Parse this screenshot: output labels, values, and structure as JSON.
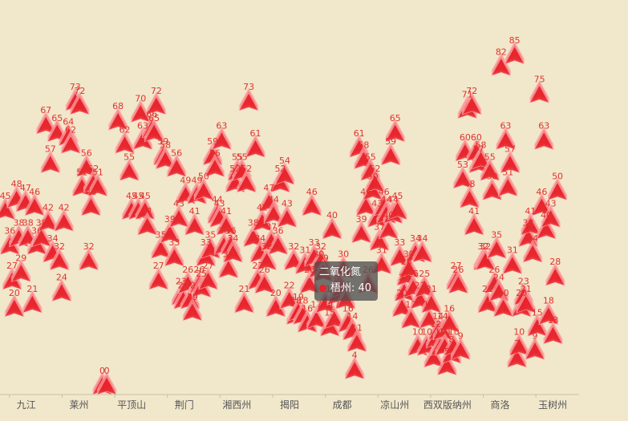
{
  "chart_data": {
    "type": "scatter",
    "symbol": "triangle",
    "color": "#e8232b",
    "background": "#f1e7cb",
    "xlabels": [
      "九江",
      "莱州",
      "平顶山",
      "荆门",
      "湘西州",
      "揭阳",
      "成都",
      "凉山州",
      "西双版纳州",
      "商洛",
      "玉树州"
    ],
    "ylim": [
      0,
      100
    ],
    "points": [
      [
        0.1,
        45
      ],
      [
        0.2,
        36
      ],
      [
        0.25,
        27
      ],
      [
        0.3,
        20
      ],
      [
        0.35,
        48
      ],
      [
        0.4,
        38
      ],
      [
        0.45,
        29
      ],
      [
        0.55,
        47
      ],
      [
        0.6,
        38
      ],
      [
        0.7,
        21
      ],
      [
        0.75,
        46
      ],
      [
        0.8,
        36
      ],
      [
        0.9,
        38
      ],
      [
        1.0,
        67
      ],
      [
        1.05,
        42
      ],
      [
        1.1,
        57
      ],
      [
        1.15,
        34
      ],
      [
        1.25,
        65
      ],
      [
        1.3,
        32
      ],
      [
        1.35,
        24
      ],
      [
        1.4,
        42
      ],
      [
        1.5,
        64
      ],
      [
        1.55,
        62
      ],
      [
        1.65,
        73
      ],
      [
        1.75,
        72
      ],
      [
        1.8,
        51
      ],
      [
        1.9,
        56
      ],
      [
        1.95,
        32
      ],
      [
        2.0,
        46
      ],
      [
        2.05,
        52
      ],
      [
        2.15,
        51
      ],
      [
        2.25,
        0
      ],
      [
        2.35,
        0
      ],
      [
        2.6,
        68
      ],
      [
        2.75,
        62
      ],
      [
        2.85,
        55
      ],
      [
        2.9,
        45
      ],
      [
        3.05,
        45
      ],
      [
        3.1,
        70
      ],
      [
        3.15,
        63
      ],
      [
        3.2,
        45
      ],
      [
        3.25,
        41
      ],
      [
        3.35,
        66
      ],
      [
        3.4,
        65
      ],
      [
        3.45,
        72
      ],
      [
        3.5,
        27
      ],
      [
        3.55,
        35
      ],
      [
        3.6,
        59
      ],
      [
        3.65,
        58
      ],
      [
        3.75,
        39
      ],
      [
        3.85,
        33
      ],
      [
        3.9,
        56
      ],
      [
        3.95,
        43
      ],
      [
        4.0,
        23
      ],
      [
        4.05,
        22
      ],
      [
        4.1,
        49
      ],
      [
        4.15,
        26
      ],
      [
        4.2,
        22
      ],
      [
        4.25,
        19
      ],
      [
        4.3,
        41
      ],
      [
        4.35,
        49
      ],
      [
        4.4,
        26
      ],
      [
        4.45,
        25
      ],
      [
        4.5,
        50
      ],
      [
        4.55,
        33
      ],
      [
        4.6,
        27
      ],
      [
        4.65,
        35
      ],
      [
        4.7,
        59
      ],
      [
        4.75,
        56
      ],
      [
        4.8,
        44
      ],
      [
        4.85,
        43
      ],
      [
        4.9,
        63
      ],
      [
        4.95,
        36
      ],
      [
        5.0,
        41
      ],
      [
        5.05,
        30
      ],
      [
        5.1,
        36
      ],
      [
        5.15,
        34
      ],
      [
        5.2,
        52
      ],
      [
        5.25,
        55
      ],
      [
        5.35,
        55
      ],
      [
        5.4,
        21
      ],
      [
        5.45,
        52
      ],
      [
        5.5,
        73
      ],
      [
        5.6,
        38
      ],
      [
        5.65,
        61
      ],
      [
        5.7,
        27
      ],
      [
        5.75,
        34
      ],
      [
        5.8,
        42
      ],
      [
        5.85,
        26
      ],
      [
        5.9,
        32
      ],
      [
        5.95,
        47
      ],
      [
        6.0,
        37
      ],
      [
        6.05,
        44
      ],
      [
        6.1,
        20
      ],
      [
        6.15,
        36
      ],
      [
        6.2,
        52
      ],
      [
        6.3,
        54
      ],
      [
        6.35,
        43
      ],
      [
        6.4,
        22
      ],
      [
        6.5,
        32
      ],
      [
        6.55,
        18
      ],
      [
        6.6,
        19
      ],
      [
        6.7,
        18
      ],
      [
        6.75,
        31
      ],
      [
        6.8,
        16
      ],
      [
        6.85,
        26
      ],
      [
        6.9,
        46
      ],
      [
        6.95,
        33
      ],
      [
        7.0,
        17
      ],
      [
        7.05,
        30
      ],
      [
        7.1,
        32
      ],
      [
        7.15,
        29
      ],
      [
        7.2,
        21
      ],
      [
        7.3,
        15
      ],
      [
        7.35,
        40
      ],
      [
        7.4,
        17
      ],
      [
        7.45,
        23
      ],
      [
        7.5,
        26
      ],
      [
        7.55,
        25
      ],
      [
        7.6,
        30
      ],
      [
        7.65,
        22
      ],
      [
        7.7,
        16
      ],
      [
        7.8,
        14
      ],
      [
        7.85,
        4
      ],
      [
        7.9,
        11
      ],
      [
        7.95,
        61
      ],
      [
        8.0,
        39
      ],
      [
        8.05,
        58
      ],
      [
        8.1,
        46
      ],
      [
        8.15,
        26
      ],
      [
        8.2,
        55
      ],
      [
        8.25,
        50
      ],
      [
        8.3,
        52
      ],
      [
        8.35,
        43
      ],
      [
        8.4,
        37
      ],
      [
        8.45,
        31
      ],
      [
        8.5,
        46
      ],
      [
        8.55,
        44
      ],
      [
        8.6,
        40
      ],
      [
        8.65,
        59
      ],
      [
        8.7,
        44
      ],
      [
        8.75,
        65
      ],
      [
        8.8,
        45
      ],
      [
        8.85,
        33
      ],
      [
        8.9,
        20
      ],
      [
        8.95,
        24
      ],
      [
        9.0,
        28
      ],
      [
        9.05,
        30
      ],
      [
        9.1,
        17
      ],
      [
        9.15,
        25
      ],
      [
        9.2,
        34
      ],
      [
        9.25,
        10
      ],
      [
        9.3,
        22
      ],
      [
        9.35,
        34
      ],
      [
        9.4,
        25
      ],
      [
        9.45,
        10
      ],
      [
        9.5,
        17
      ],
      [
        9.55,
        21
      ],
      [
        9.6,
        7
      ],
      [
        9.65,
        12
      ],
      [
        9.7,
        14
      ],
      [
        9.75,
        10
      ],
      [
        9.8,
        14
      ],
      [
        9.85,
        10
      ],
      [
        9.9,
        5
      ],
      [
        9.95,
        16
      ],
      [
        10.0,
        8
      ],
      [
        10.05,
        10
      ],
      [
        10.1,
        27
      ],
      [
        10.15,
        26
      ],
      [
        10.2,
        9
      ],
      [
        10.25,
        53
      ],
      [
        10.3,
        60
      ],
      [
        10.35,
        71
      ],
      [
        10.4,
        48
      ],
      [
        10.45,
        72
      ],
      [
        10.5,
        41
      ],
      [
        10.55,
        60
      ],
      [
        10.6,
        57
      ],
      [
        10.65,
        58
      ],
      [
        10.7,
        32
      ],
      [
        10.75,
        32
      ],
      [
        10.8,
        21
      ],
      [
        10.85,
        55
      ],
      [
        10.9,
        50
      ],
      [
        10.95,
        26
      ],
      [
        11.0,
        35
      ],
      [
        11.05,
        24
      ],
      [
        11.1,
        82
      ],
      [
        11.15,
        20
      ],
      [
        11.2,
        63
      ],
      [
        11.25,
        51
      ],
      [
        11.3,
        57
      ],
      [
        11.35,
        31
      ],
      [
        11.4,
        85
      ],
      [
        11.45,
        7
      ],
      [
        11.5,
        10
      ],
      [
        11.55,
        20
      ],
      [
        11.6,
        23
      ],
      [
        11.65,
        21
      ],
      [
        11.7,
        38
      ],
      [
        11.75,
        41
      ],
      [
        11.8,
        34
      ],
      [
        11.85,
        9
      ],
      [
        11.9,
        15
      ],
      [
        11.95,
        75
      ],
      [
        12.0,
        46
      ],
      [
        12.05,
        63
      ],
      [
        12.1,
        40
      ],
      [
        12.15,
        18
      ],
      [
        12.2,
        43
      ],
      [
        12.25,
        13
      ],
      [
        12.3,
        28
      ],
      [
        12.35,
        50
      ]
    ],
    "tooltip": {
      "series": "二氧化氮",
      "city": "梧州",
      "value": 40
    }
  }
}
